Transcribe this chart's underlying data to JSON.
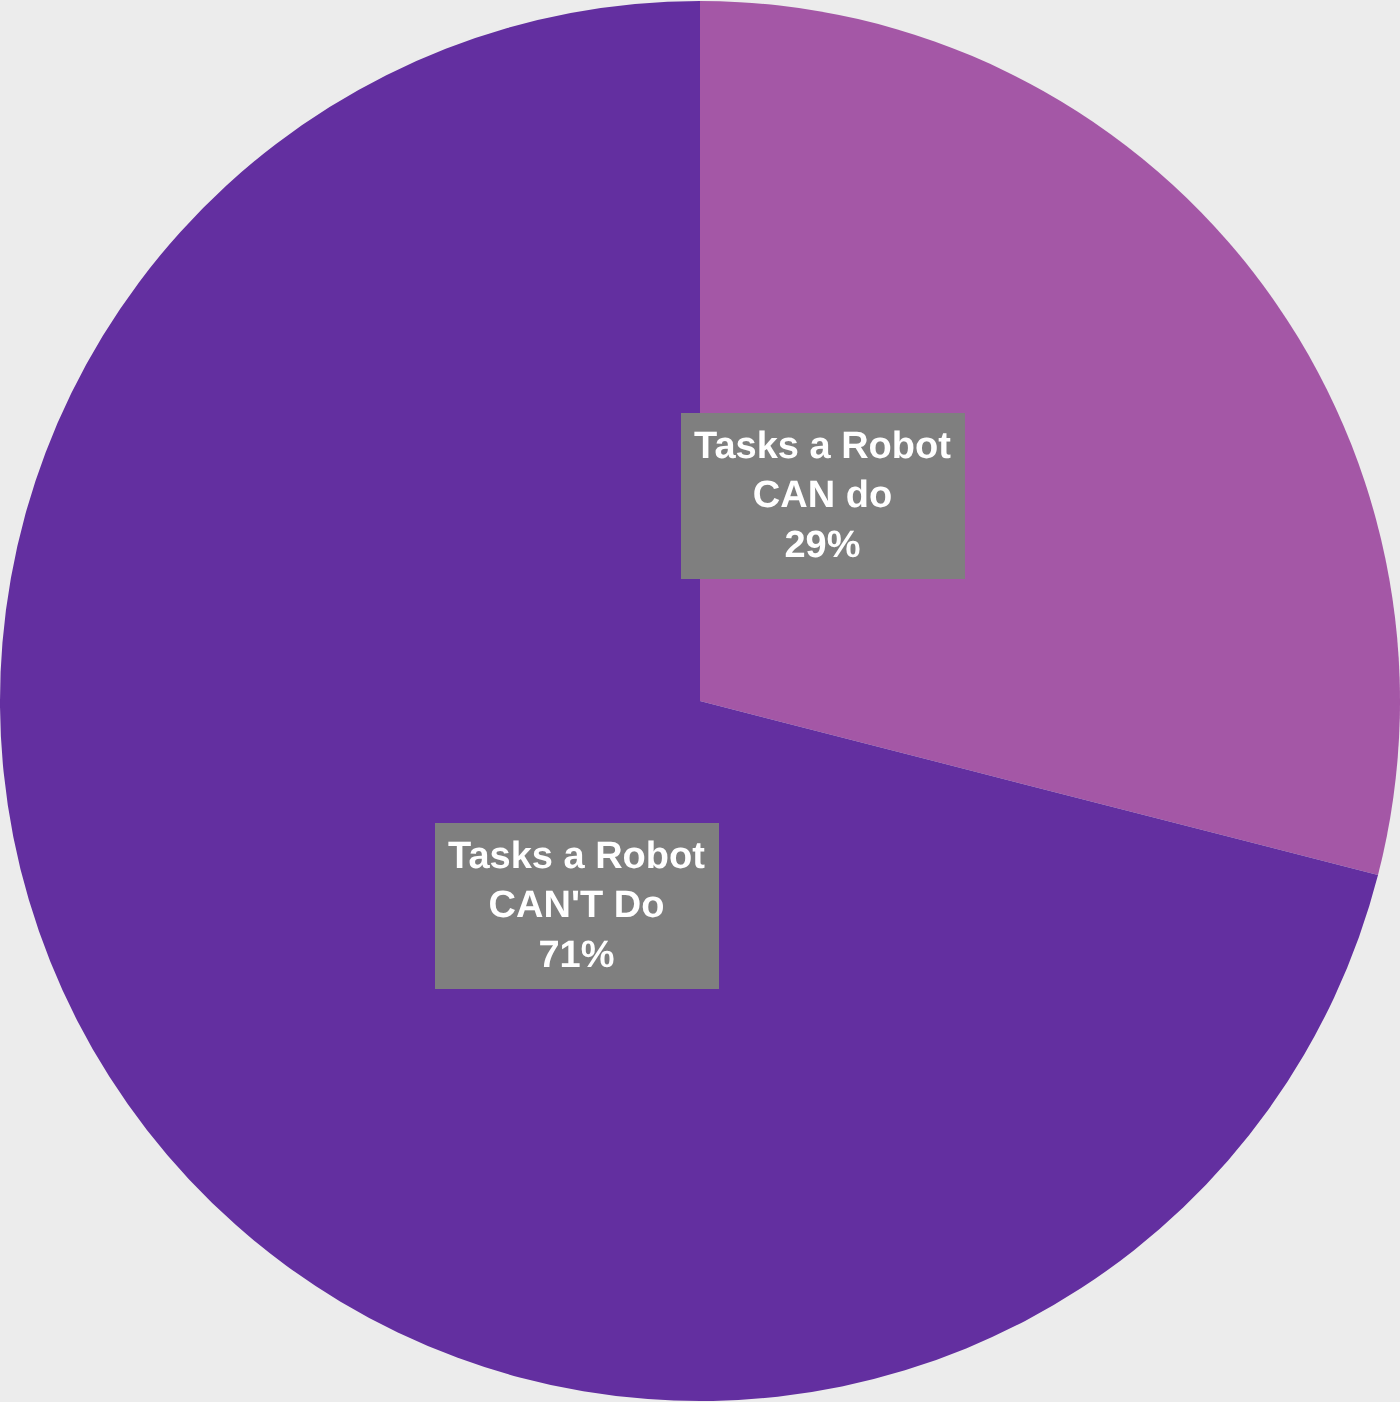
{
  "chart_data": {
    "type": "pie",
    "categories": [
      "Tasks a Robot\nCAN do",
      "Tasks a Robot\nCAN'T Do"
    ],
    "values": [
      29,
      71
    ],
    "colors": [
      "#a457a6",
      "#632fa0"
    ],
    "value_labels": [
      "29%",
      "71%"
    ],
    "legend": false
  }
}
